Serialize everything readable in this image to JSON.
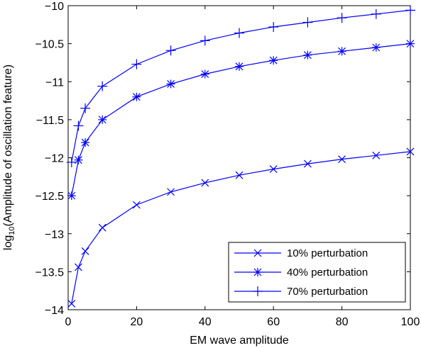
{
  "chart_data": {
    "type": "line",
    "xlabel": "EM wave amplitude",
    "ylabel_prefix": "log",
    "ylabel_subscript": "10",
    "ylabel_suffix": "(Amplitude of oscillation feature)",
    "xlim": [
      0,
      100
    ],
    "ylim": [
      -14,
      -10
    ],
    "xticks": [
      0,
      20,
      40,
      60,
      80,
      100
    ],
    "xtick_labels": [
      "0",
      "20",
      "40",
      "60",
      "80",
      "100"
    ],
    "yticks": [
      -14,
      -13.5,
      -13,
      -12.5,
      -12,
      -11.5,
      -11,
      -10.5,
      -10
    ],
    "ytick_labels": [
      "−14",
      "−13.5",
      "−13",
      "−12.5",
      "−12",
      "−11.5",
      "−11",
      "−10.5",
      "−10"
    ],
    "grid": false,
    "legend_position": "bottom-right",
    "x": [
      1,
      3,
      5,
      10,
      20,
      30,
      40,
      50,
      60,
      70,
      80,
      90,
      100
    ],
    "series": [
      {
        "name": "10% perturbation",
        "marker": "x",
        "color": "#0000ff",
        "values": [
          -13.92,
          -13.44,
          -13.23,
          -12.92,
          -12.62,
          -12.45,
          -12.33,
          -12.23,
          -12.15,
          -12.08,
          -12.02,
          -11.97,
          -11.92
        ]
      },
      {
        "name": "40% perturbation",
        "marker": "*",
        "color": "#0000ff",
        "values": [
          -12.5,
          -12.03,
          -11.8,
          -11.5,
          -11.2,
          -11.03,
          -10.9,
          -10.8,
          -10.72,
          -10.65,
          -10.6,
          -10.55,
          -10.5
        ]
      },
      {
        "name": "70% perturbation",
        "marker": "+",
        "color": "#0000ff",
        "values": [
          -12.06,
          -11.58,
          -11.35,
          -11.06,
          -10.77,
          -10.59,
          -10.46,
          -10.36,
          -10.28,
          -10.22,
          -10.16,
          -10.11,
          -10.06
        ]
      }
    ]
  }
}
